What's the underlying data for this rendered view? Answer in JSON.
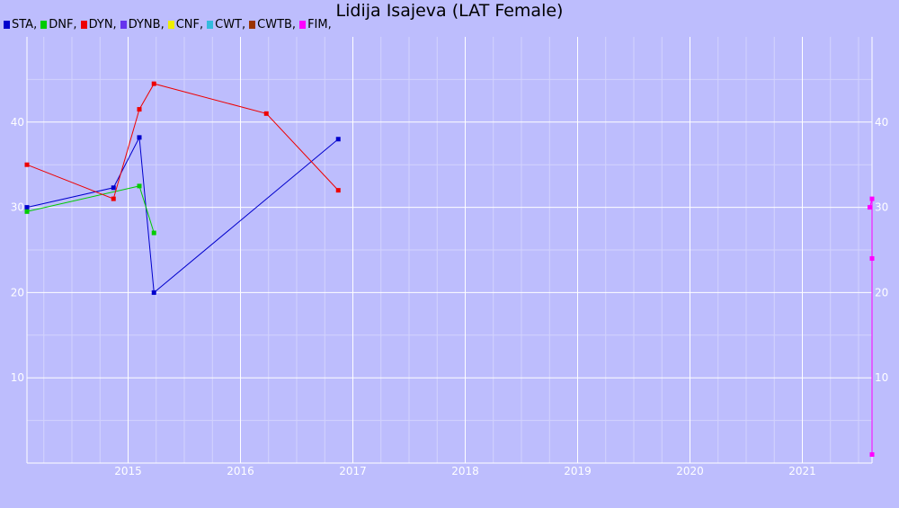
{
  "chart_data": {
    "type": "line",
    "title": "Lidija Isajeva (LAT Female)",
    "legend": [
      {
        "label": "STA,",
        "color": "#0000cc"
      },
      {
        "label": "DNF,",
        "color": "#00cc00"
      },
      {
        "label": "DYN,",
        "color": "#ee0000"
      },
      {
        "label": "DYNB,",
        "color": "#6633ee"
      },
      {
        "label": "CNF,",
        "color": "#eeee00"
      },
      {
        "label": "CWT,",
        "color": "#33bbdd"
      },
      {
        "label": "CWTB,",
        "color": "#993300"
      },
      {
        "label": "FIM,",
        "color": "#ff00ff"
      }
    ],
    "xlim": [
      2014.1,
      2021.62
    ],
    "ylim": [
      0,
      50
    ],
    "x_ticks": [
      2015,
      2016,
      2017,
      2018,
      2019,
      2020,
      2021
    ],
    "x_tick_labels": [
      "2015",
      "2016",
      "2017",
      "2018",
      "2019",
      "2020",
      "2021"
    ],
    "y_ticks": [
      10,
      20,
      30,
      40
    ],
    "y_tick_labels": [
      "10",
      "20",
      "30",
      "40"
    ],
    "grid": true,
    "legend_position": "top-left",
    "series": [
      {
        "name": "STA",
        "color": "#0000cc",
        "points": [
          [
            2014.1,
            30
          ],
          [
            2014.87,
            32.3
          ],
          [
            2015.1,
            38.2
          ],
          [
            2015.23,
            20
          ],
          [
            2016.87,
            38
          ]
        ]
      },
      {
        "name": "DNF",
        "color": "#00cc00",
        "points": [
          [
            2014.1,
            29.5
          ],
          [
            2015.1,
            32.5
          ],
          [
            2015.23,
            27
          ]
        ]
      },
      {
        "name": "DYN",
        "color": "#ee0000",
        "points": [
          [
            2014.1,
            35
          ],
          [
            2014.87,
            31
          ],
          [
            2015.1,
            41.5
          ],
          [
            2015.23,
            44.5
          ],
          [
            2016.23,
            41
          ],
          [
            2016.87,
            32
          ]
        ]
      },
      {
        "name": "FIM",
        "color": "#ff00ff",
        "points": [
          [
            2021.6,
            30
          ],
          [
            2021.62,
            31
          ],
          [
            2021.62,
            24
          ],
          [
            2021.62,
            1
          ]
        ]
      }
    ]
  }
}
